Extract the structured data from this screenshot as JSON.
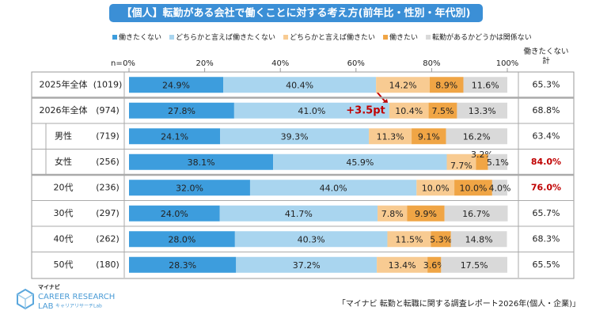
{
  "chart_data": {
    "type": "stacked-bar",
    "title": "【個人】転勤がある会社で働くことに対する考え方(前年比・性別・年代別)",
    "categories": [
      "2025年全体",
      "2026年全体",
      "男性",
      "女性",
      "20代",
      "30代",
      "40代",
      "50代"
    ],
    "n": {
      "label": "n=",
      "values": [
        1019,
        974,
        719,
        256,
        236,
        297,
        262,
        180
      ],
      "value_labels": [
        "(1019)",
        "(974)",
        "(719)",
        "(256)",
        "(236)",
        "(297)",
        "(262)",
        "(180)"
      ]
    },
    "xlim": [
      0,
      100
    ],
    "xticks": [
      {
        "value": 0,
        "label": "0%"
      },
      {
        "value": 20,
        "label": "20%"
      },
      {
        "value": 40,
        "label": "40%"
      },
      {
        "value": 60,
        "label": "60%"
      },
      {
        "value": 80,
        "label": "80%"
      },
      {
        "value": 100,
        "label": "100%"
      }
    ],
    "series": [
      {
        "name": "働きたくない",
        "color": "#3d9ddd",
        "values": [
          24.9,
          27.8,
          24.1,
          38.1,
          32.0,
          24.0,
          28.0,
          28.3
        ],
        "value_labels": [
          "24.9%",
          "27.8%",
          "24.1%",
          "38.1%",
          "32.0%",
          "24.0%",
          "28.0%",
          "28.3%"
        ]
      },
      {
        "name": "どちらかと言えば働きたくない",
        "color": "#a9d5ef",
        "values": [
          40.4,
          41.0,
          39.3,
          45.9,
          44.0,
          41.7,
          40.3,
          37.2
        ],
        "value_labels": [
          "40.4%",
          "41.0%",
          "39.3%",
          "45.9%",
          "44.0%",
          "41.7%",
          "40.3%",
          "37.2%"
        ]
      },
      {
        "name": "どちらかと言えば働きたい",
        "color": "#f8cb92",
        "values": [
          14.2,
          10.4,
          11.3,
          7.7,
          10.0,
          7.8,
          11.5,
          13.4
        ],
        "value_labels": [
          "14.2%",
          "10.4%",
          "11.3%",
          "7.7%",
          "10.0%",
          "7.8%",
          "11.5%",
          "13.4%"
        ]
      },
      {
        "name": "働きたい",
        "color": "#f0a545",
        "values": [
          8.9,
          7.5,
          9.1,
          3.2,
          10.0,
          9.9,
          5.3,
          3.6
        ],
        "value_labels": [
          "8.9%",
          "7.5%",
          "9.1%",
          "3.2%",
          "10.0%",
          "9.9%",
          "5.3%",
          "3.6%"
        ]
      },
      {
        "name": "転勤があるかどうかは関係ない",
        "color": "#d9d9d9",
        "values": [
          11.6,
          13.3,
          16.2,
          5.1,
          4.0,
          16.7,
          14.8,
          17.5
        ],
        "value_labels": [
          "11.6%",
          "13.3%",
          "16.2%",
          "5.1%",
          "4.0%",
          "16.7%",
          "14.8%",
          "17.5%"
        ]
      }
    ],
    "totals": {
      "name": "働きたくない計",
      "values": [
        65.3,
        68.8,
        63.4,
        84.0,
        76.0,
        65.7,
        68.3,
        65.5
      ],
      "value_labels": [
        "65.3%",
        "68.8%",
        "63.4%",
        "84.0%",
        "76.0%",
        "65.7%",
        "68.3%",
        "65.5%"
      ],
      "colors": [
        "#222222",
        "#222222",
        "#222222",
        "#c00000",
        "#c00000",
        "#222222",
        "#222222",
        "#222222"
      ]
    },
    "annotations": [
      {
        "text": "+3.5pt",
        "color": "#c00000"
      }
    ],
    "logo": {
      "brand": "マイナビ",
      "line1": "CAREER RESEARCH",
      "line2": "LAB",
      "sub": "キャリアリサーチLab"
    },
    "source": "「マイナビ 転勤と転職に関する調査レポート2026年(個人・企業)」"
  }
}
